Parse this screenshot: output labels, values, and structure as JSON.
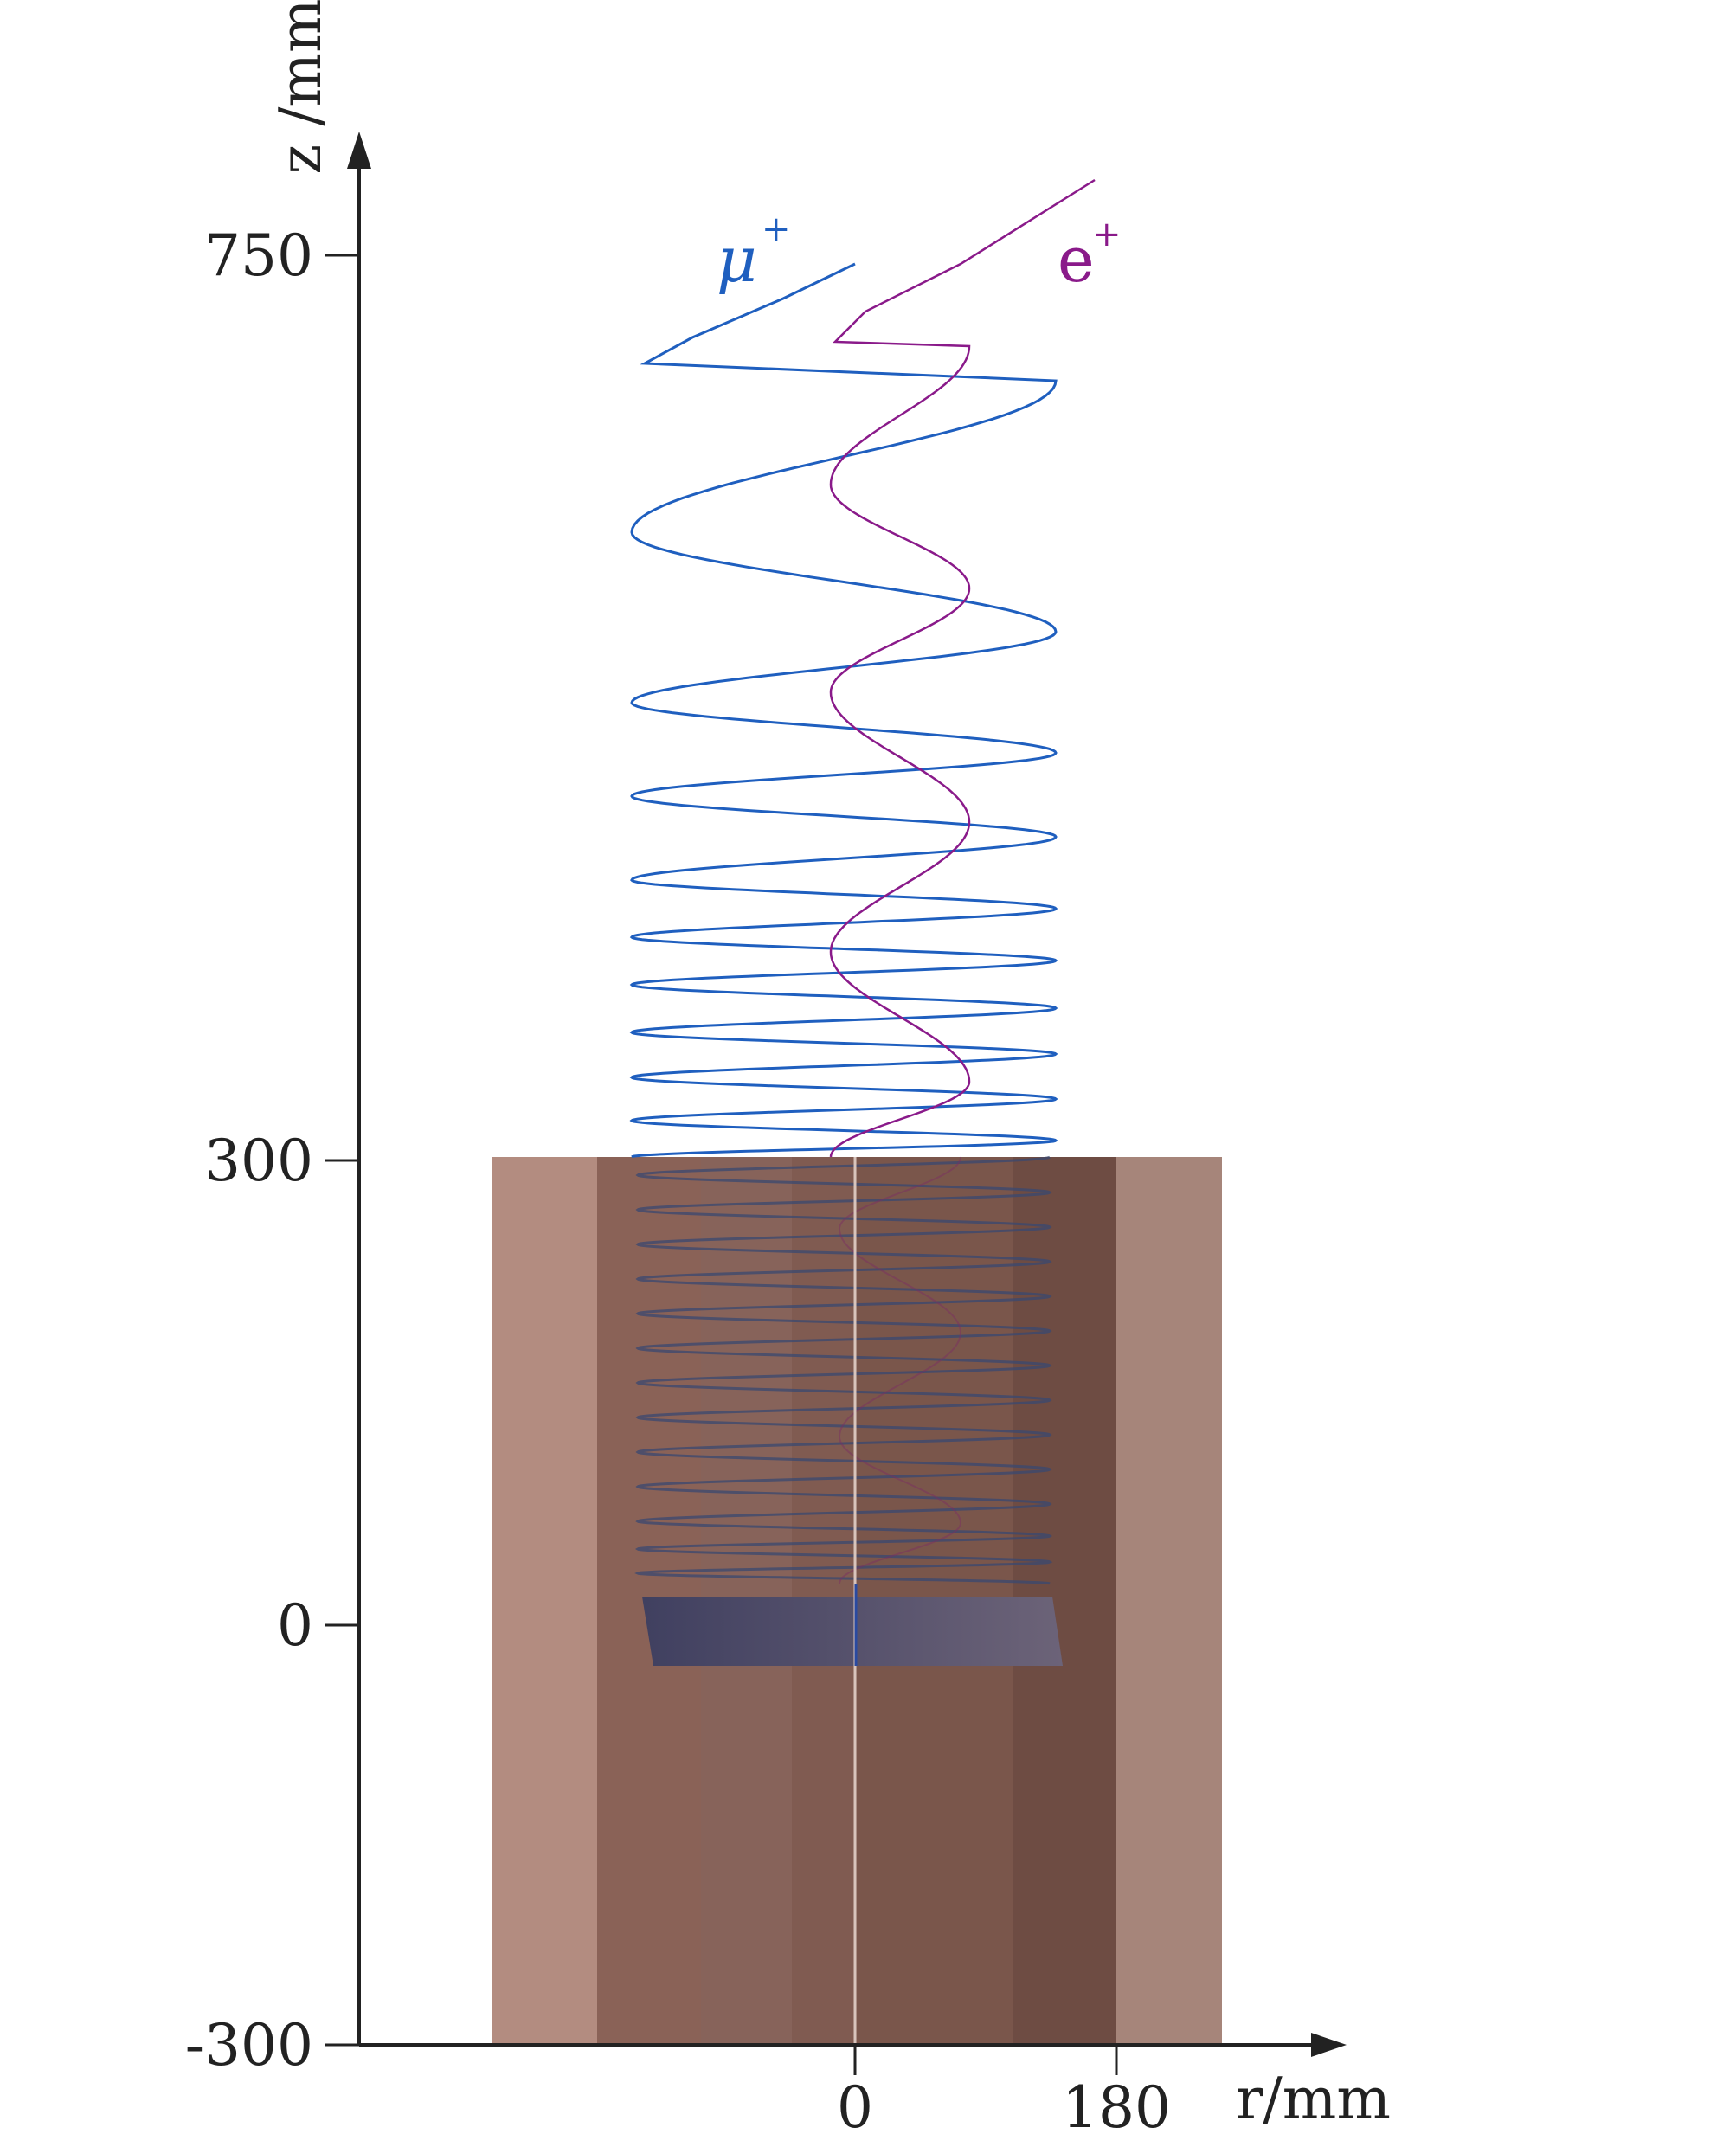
{
  "axes": {
    "z_label": "z /mm",
    "r_label": "r/mm",
    "z_ticks": [
      {
        "label": "750",
        "value": 750
      },
      {
        "label": "300",
        "value": 300
      },
      {
        "label": "0",
        "value": 0
      },
      {
        "label": "-300",
        "value": -300
      }
    ],
    "r_ticks": [
      {
        "label": "0",
        "value": 0
      },
      {
        "label": "180",
        "value": 180
      }
    ],
    "axis_color": "#222222"
  },
  "tracks": [
    {
      "name": "μ",
      "charge": "+",
      "color": "#1f5fbf"
    },
    {
      "name": "e",
      "charge": "+",
      "color": "#8a1a8a"
    }
  ],
  "solenoid": {
    "outer_color": "#b38c80",
    "inner_color": "#8a6257",
    "core_color": "#7a564b",
    "target_color": "#5c5a78"
  }
}
